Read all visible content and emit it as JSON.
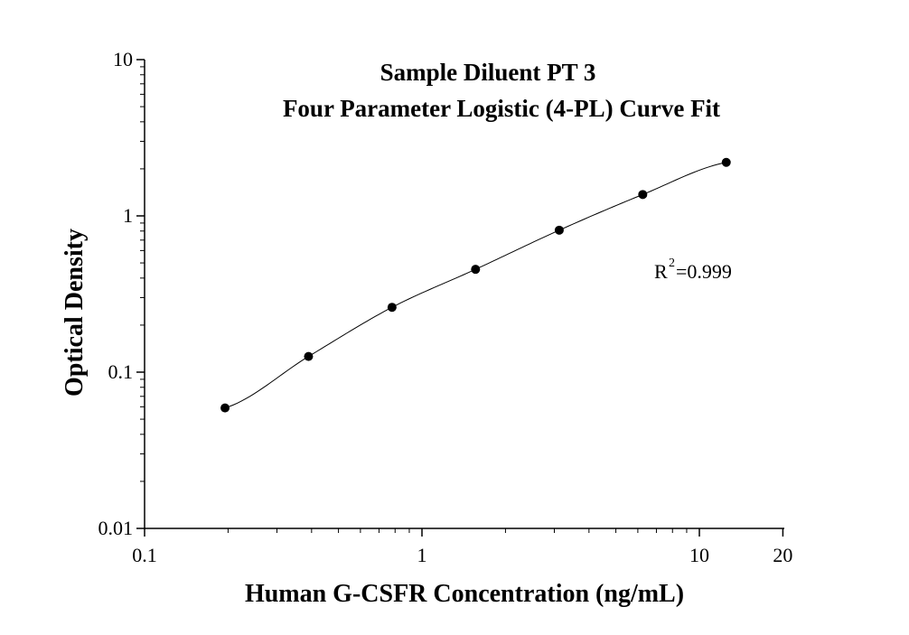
{
  "chart_data": {
    "type": "scatter",
    "title": "Sample Diluent PT 3",
    "subtitle": "Four Parameter Logistic (4-PL) Curve Fit",
    "xlabel": "Human G-CSFR Concentration (ng/mL)",
    "ylabel": "Optical Density",
    "x_scale": "log",
    "y_scale": "log",
    "xlim": [
      0.1,
      20
    ],
    "ylim": [
      0.01,
      10
    ],
    "x_ticks": [
      "0.1",
      "1",
      "10",
      "20"
    ],
    "y_ticks": [
      "0.01",
      "0.1",
      "1",
      "10"
    ],
    "grid": false,
    "legend": "none",
    "series": [
      {
        "x": [
          0.195,
          0.39,
          0.78,
          1.56,
          3.125,
          6.25,
          12.5
        ],
        "y": [
          0.059,
          0.126,
          0.26,
          0.455,
          0.81,
          1.37,
          2.2
        ]
      }
    ],
    "annotation": {
      "r_prefix": "R",
      "r_superscript": "2",
      "r_value": "=0.999"
    }
  }
}
